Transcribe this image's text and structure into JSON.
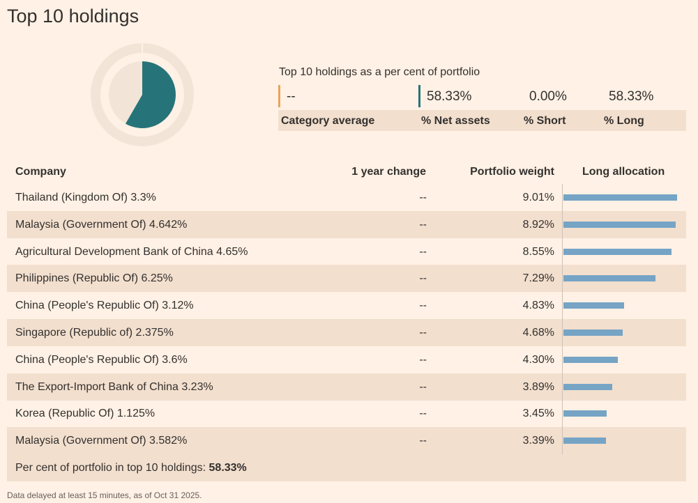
{
  "header": {
    "title": "Top 10 holdings"
  },
  "summary": {
    "caption": "Top 10 holdings as a per cent of portfolio",
    "category_average": "--",
    "net_assets": {
      "value": 58.33,
      "label": "58.33%"
    },
    "short": {
      "value": 0,
      "label": "0.00%"
    },
    "long": {
      "value": 58.33,
      "label": "58.33%"
    },
    "labels": [
      "Category average",
      "% Net assets",
      "% Short",
      "% Long"
    ]
  },
  "table": {
    "columns": [
      "Company",
      "1 year change",
      "Portfolio weight",
      "Long allocation"
    ],
    "rows": [
      {
        "company": "Thailand (Kingdom Of) 3.3%",
        "change": "--",
        "weight": {
          "value": 9.01,
          "label": "9.01%"
        }
      },
      {
        "company": "Malaysia (Government Of) 4.642%",
        "change": "--",
        "weight": {
          "value": 8.92,
          "label": "8.92%"
        }
      },
      {
        "company": "Agricultural Development Bank of China 4.65%",
        "change": "--",
        "weight": {
          "value": 8.55,
          "label": "8.55%"
        }
      },
      {
        "company": "Philippines (Republic Of) 6.25%",
        "change": "--",
        "weight": {
          "value": 7.29,
          "label": "7.29%"
        }
      },
      {
        "company": "China (People's Republic Of) 3.12%",
        "change": "--",
        "weight": {
          "value": 4.83,
          "label": "4.83%"
        }
      },
      {
        "company": "Singapore (Republic of) 2.375%",
        "change": "--",
        "weight": {
          "value": 4.68,
          "label": "4.68%"
        }
      },
      {
        "company": "China (People's Republic Of) 3.6%",
        "change": "--",
        "weight": {
          "value": 4.3,
          "label": "4.30%"
        }
      },
      {
        "company": "The Export-Import Bank of China 3.23%",
        "change": "--",
        "weight": {
          "value": 3.89,
          "label": "3.89%"
        }
      },
      {
        "company": "Korea (Republic Of) 1.125%",
        "change": "--",
        "weight": {
          "value": 3.45,
          "label": "3.45%"
        }
      },
      {
        "company": "Malaysia (Government Of) 3.582%",
        "change": "--",
        "weight": {
          "value": 3.39,
          "label": "3.39%"
        }
      }
    ],
    "footer": {
      "text": "Per cent of portfolio in top 10 holdings:",
      "total": "58.33%"
    }
  },
  "note": "Data delayed at least 15 minutes, as of Oct 31 2025."
}
